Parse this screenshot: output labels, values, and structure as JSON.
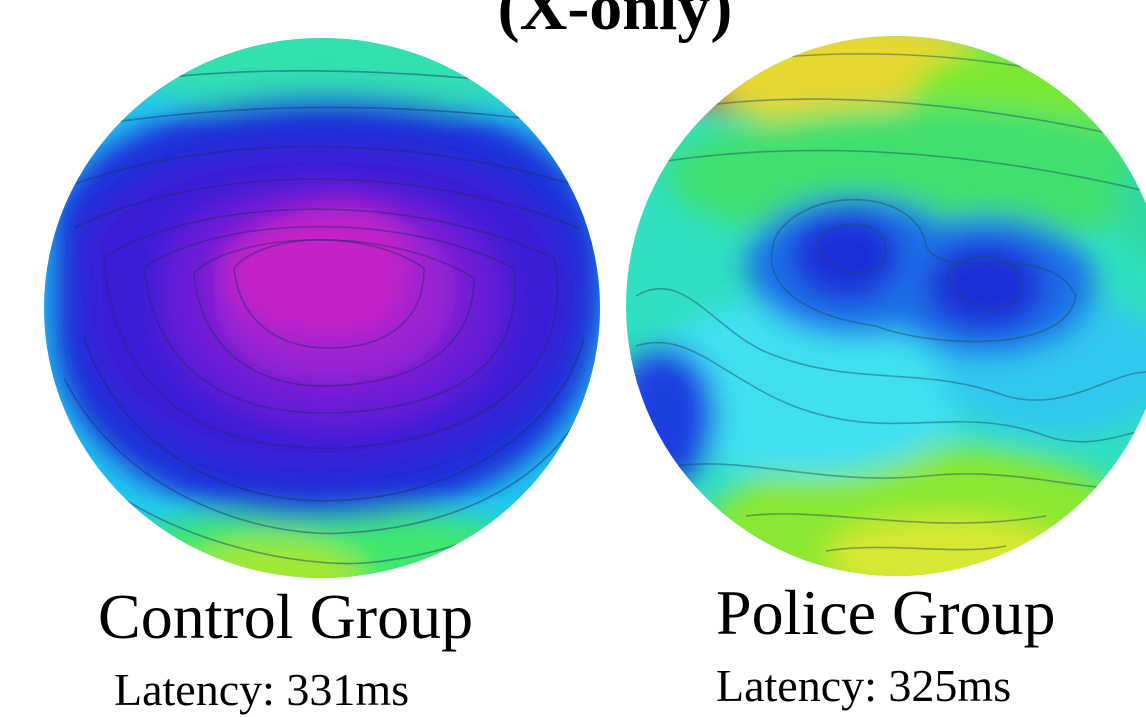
{
  "title": "(X-only)",
  "maps": [
    {
      "group": "Control Group",
      "latency": "Latency: 331ms"
    },
    {
      "group": "Police Group",
      "latency": "Latency: 325ms"
    }
  ],
  "colors": {
    "background": "#ffffff",
    "text": "#000000",
    "colormap": [
      "#cc22cc",
      "#6a1fd8",
      "#1f1fd6",
      "#1f6fe8",
      "#22d0f0",
      "#30e890",
      "#7be830",
      "#e8e830",
      "#ff2a10"
    ]
  }
}
